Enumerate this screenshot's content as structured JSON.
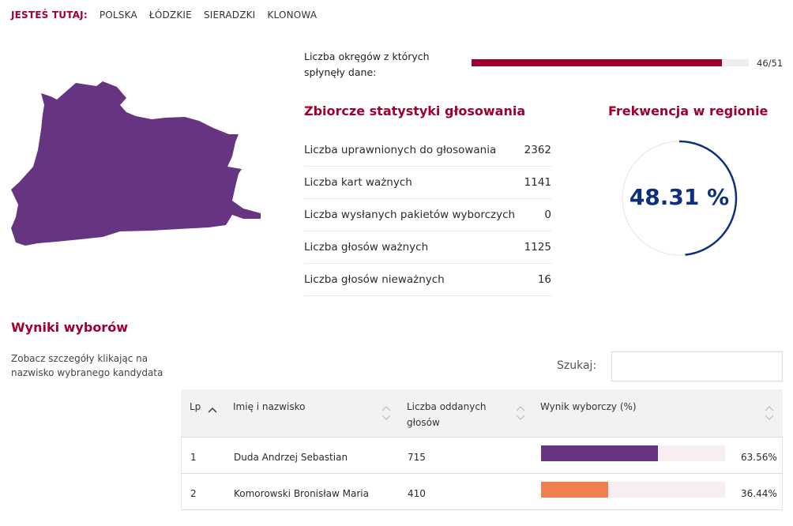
{
  "breadcrumb": {
    "lead": "JESTEŚ TUTAJ:",
    "items": [
      "POLSKA",
      "ŁÓDZKIE",
      "SIERADZKI",
      "KLONOWA"
    ]
  },
  "map": {
    "region_color": "#673482"
  },
  "progress": {
    "label": "Liczba okręgów z których spłynęły dane:",
    "value_text": "46/51",
    "fraction": 0.902,
    "color": "#a0002d"
  },
  "stats": {
    "title": "Zbiorcze statystyki głosowania",
    "rows": [
      {
        "label": "Liczba uprawnionych do głosowania",
        "value": "2362"
      },
      {
        "label": "Liczba kart ważnych",
        "value": "1141"
      },
      {
        "label": "Liczba wysłanych pakietów wyborczych",
        "value": "0"
      },
      {
        "label": "Liczba głosów ważnych",
        "value": "1125"
      },
      {
        "label": "Liczba głosów nieważnych",
        "value": "16"
      }
    ]
  },
  "turnout": {
    "title": "Frekwencja w regionie",
    "value_text": "48.31 %",
    "fraction": 0.4831,
    "color": "#0d2f7e"
  },
  "results": {
    "title": "Wyniki wyborów",
    "hint": "Zobacz szczegóły klikając na nazwisko wybranego kandydata",
    "search_label": "Szukaj:",
    "search_value": "",
    "columns": {
      "lp": "Lp",
      "name": "Imię i nazwisko",
      "votes": "Liczba oddanych głosów",
      "result": "Wynik wyborczy (%)"
    },
    "rows": [
      {
        "lp": "1",
        "name": "Duda Andrzej Sebastian",
        "votes": "715",
        "percent_text": "63.56%",
        "fraction": 0.6356,
        "color": "#673482"
      },
      {
        "lp": "2",
        "name": "Komorowski Bronisław Maria",
        "votes": "410",
        "percent_text": "36.44%",
        "fraction": 0.3644,
        "color": "#f07f50"
      }
    ]
  }
}
